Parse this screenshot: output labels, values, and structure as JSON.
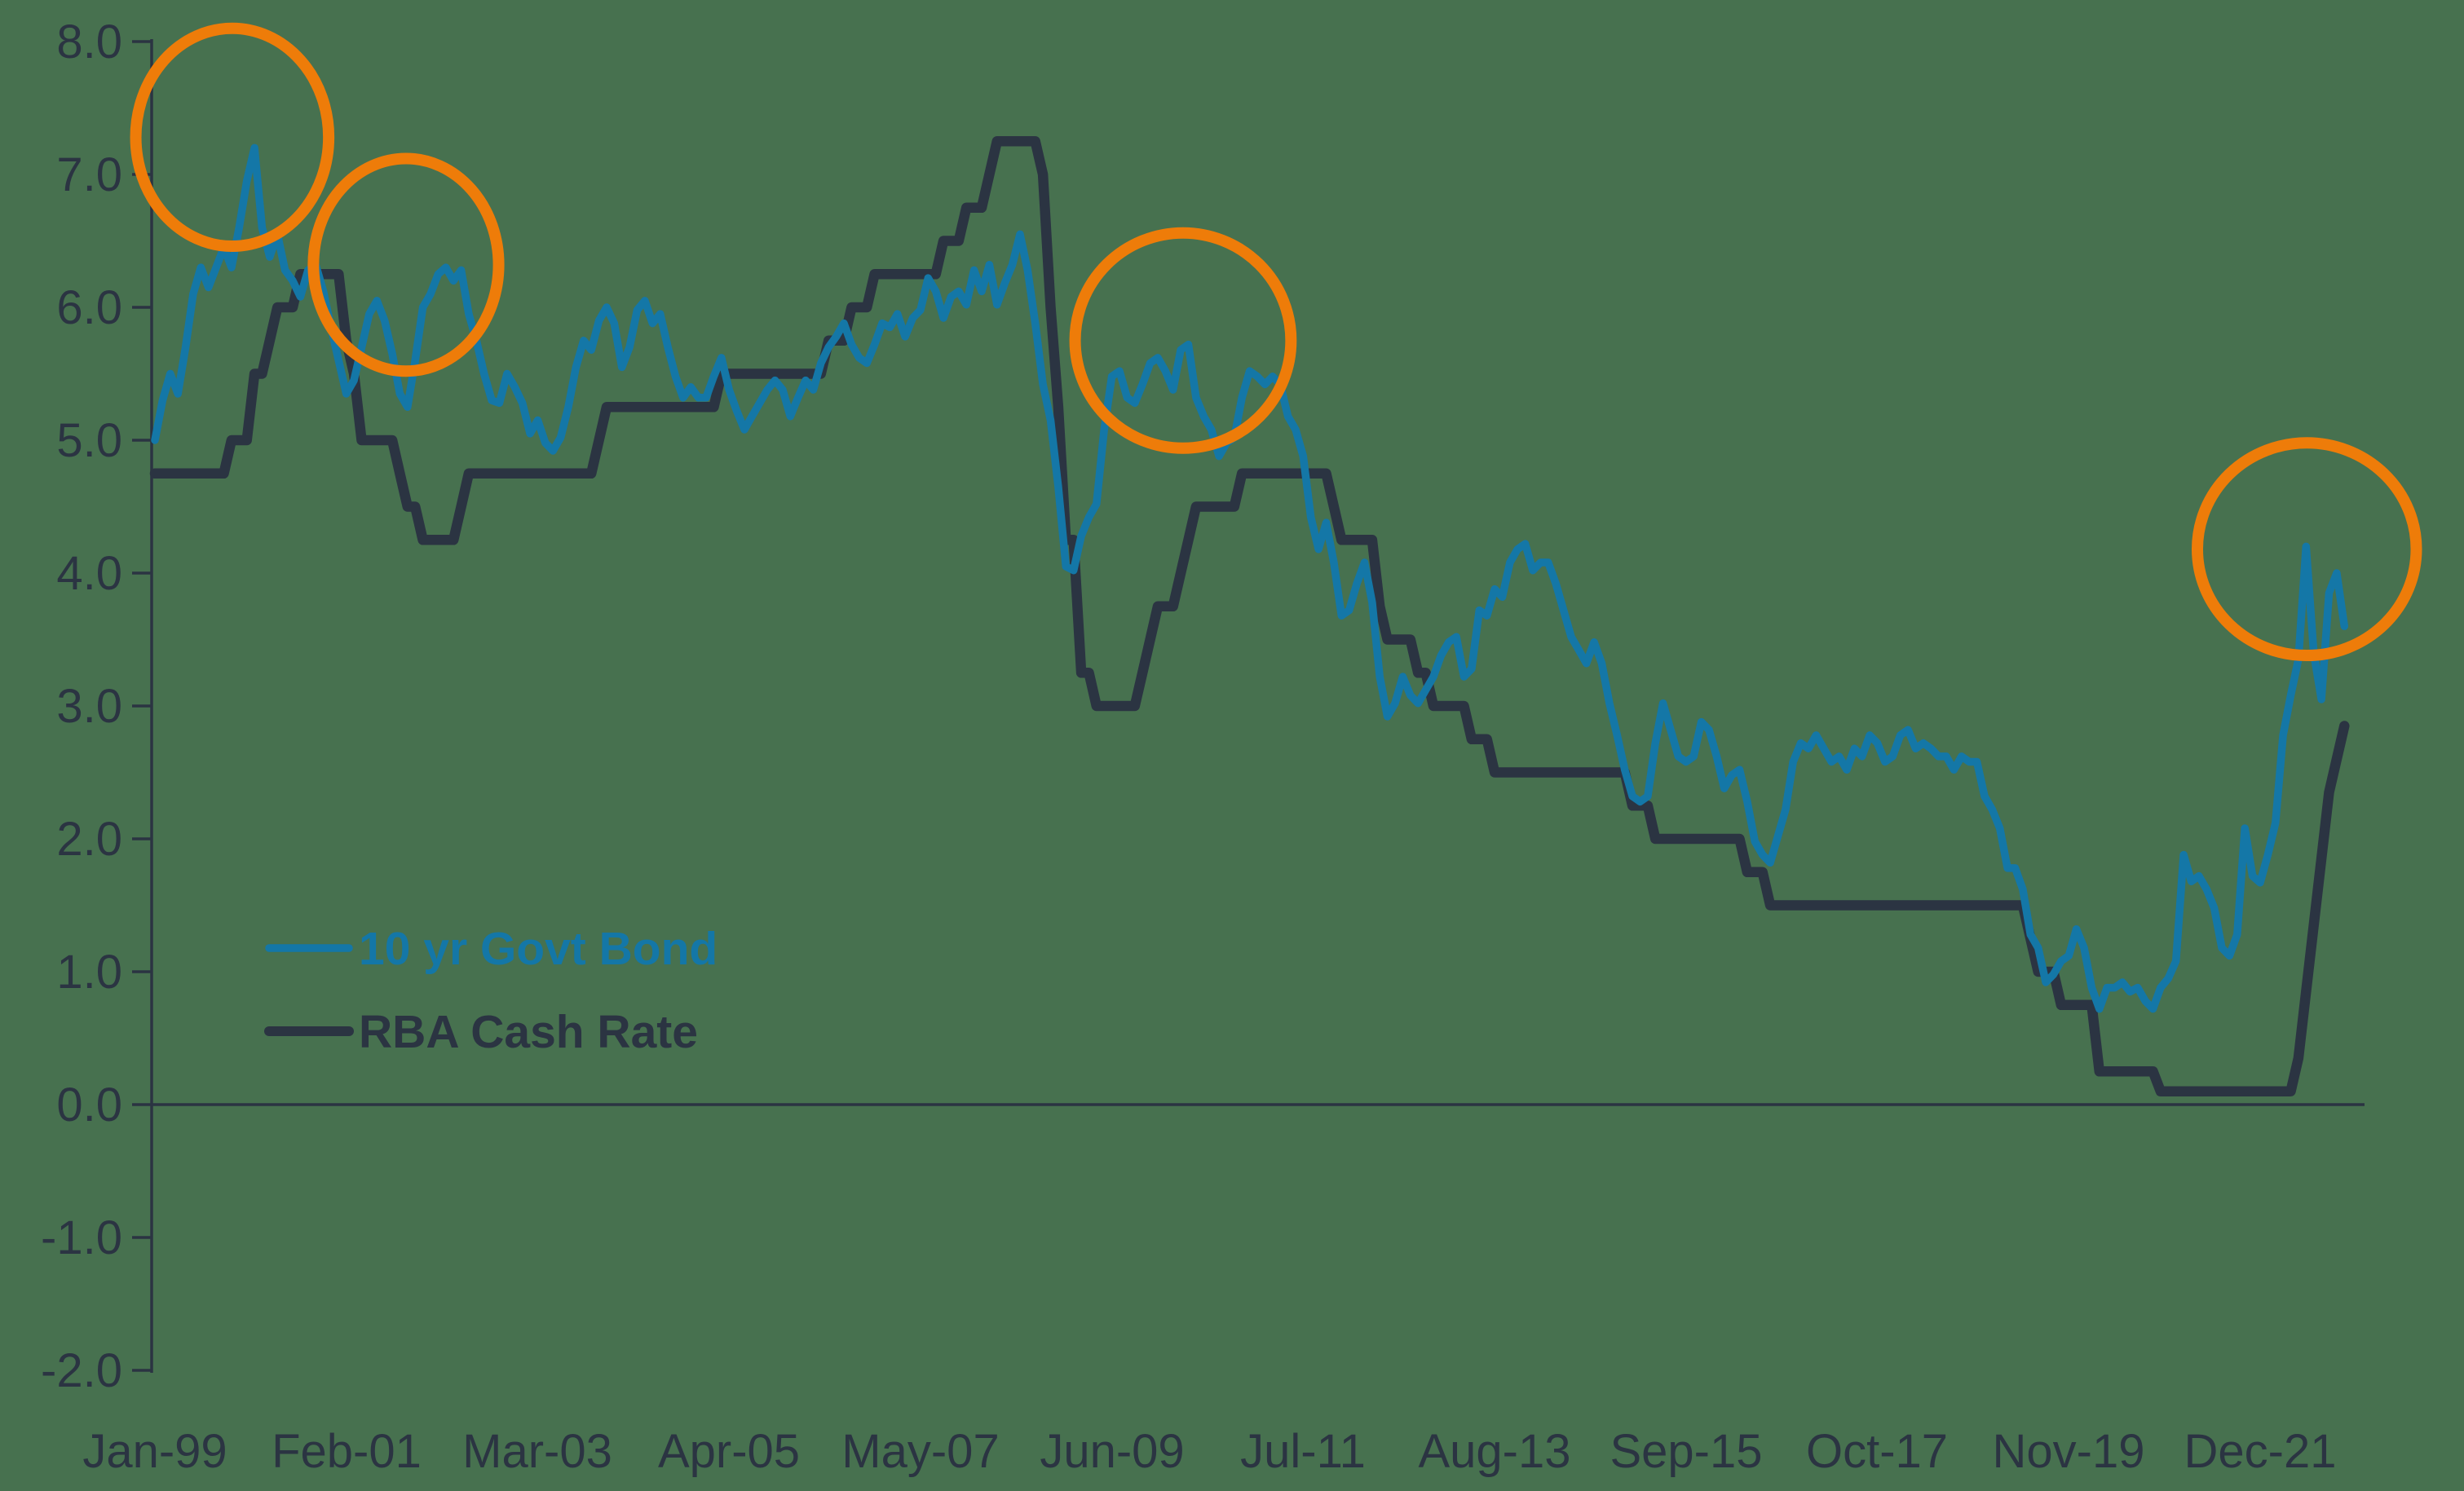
{
  "chart_data": {
    "type": "line",
    "title": "",
    "xlabel": "",
    "ylabel": "",
    "x_start": "Jan-1999",
    "x_end": "Nov-2022",
    "frequency": "monthly",
    "grid": false,
    "legend_position": "inside-lower-left",
    "x_tick_labels": [
      "Jan-99",
      "Feb-01",
      "Mar-03",
      "Apr-05",
      "May-07",
      "Jun-09",
      "Jul-11",
      "Aug-13",
      "Sep-15",
      "Oct-17",
      "Nov-19",
      "Dec-21"
    ],
    "x_tick_interval_months": 25,
    "y_tick_labels": [
      "8.0",
      "7.0",
      "6.0",
      "5.0",
      "4.0",
      "3.0",
      "2.0",
      "1.0",
      "0.0",
      "-1.0",
      "-2.0"
    ],
    "y_ticks": [
      8,
      7,
      6,
      5,
      4,
      3,
      2,
      1,
      0,
      -1,
      -2
    ],
    "ylim": [
      -2.0,
      8.0
    ],
    "series": [
      {
        "name": "10 yr Govt Bond",
        "color": "#1477A7",
        "stroke_width": 9.5,
        "values": [
          5.0,
          5.3,
          5.5,
          5.35,
          5.7,
          6.1,
          6.3,
          6.15,
          6.3,
          6.45,
          6.3,
          6.6,
          6.95,
          7.2,
          6.6,
          6.38,
          6.55,
          6.28,
          6.2,
          6.08,
          6.28,
          6.32,
          6.12,
          5.85,
          5.6,
          5.35,
          5.45,
          5.7,
          5.95,
          6.05,
          5.9,
          5.65,
          5.35,
          5.25,
          5.6,
          6.0,
          6.1,
          6.25,
          6.3,
          6.2,
          6.28,
          5.95,
          5.75,
          5.5,
          5.3,
          5.28,
          5.5,
          5.4,
          5.28,
          5.05,
          5.15,
          4.98,
          4.92,
          5.02,
          5.25,
          5.55,
          5.75,
          5.68,
          5.9,
          6.0,
          5.88,
          5.55,
          5.7,
          5.98,
          6.05,
          5.88,
          5.95,
          5.7,
          5.48,
          5.32,
          5.4,
          5.32,
          5.32,
          5.48,
          5.62,
          5.38,
          5.22,
          5.08,
          5.18,
          5.28,
          5.38,
          5.45,
          5.38,
          5.18,
          5.32,
          5.45,
          5.38,
          5.58,
          5.7,
          5.78,
          5.88,
          5.72,
          5.62,
          5.58,
          5.72,
          5.88,
          5.85,
          5.95,
          5.78,
          5.92,
          5.98,
          6.22,
          6.12,
          5.92,
          6.08,
          6.12,
          6.02,
          6.28,
          6.12,
          6.32,
          6.02,
          6.18,
          6.32,
          6.55,
          6.28,
          5.88,
          5.42,
          5.15,
          4.65,
          4.05,
          4.02,
          4.28,
          4.42,
          4.52,
          5.08,
          5.48,
          5.52,
          5.32,
          5.28,
          5.42,
          5.58,
          5.62,
          5.52,
          5.38,
          5.68,
          5.72,
          5.32,
          5.18,
          5.08,
          4.88,
          4.98,
          5.02,
          5.32,
          5.52,
          5.48,
          5.42,
          5.48,
          5.42,
          5.18,
          5.08,
          4.88,
          4.42,
          4.18,
          4.38,
          4.08,
          3.68,
          3.72,
          3.92,
          4.08,
          3.78,
          3.22,
          2.92,
          3.02,
          3.22,
          3.08,
          3.02,
          3.12,
          3.22,
          3.38,
          3.48,
          3.52,
          3.22,
          3.28,
          3.72,
          3.68,
          3.88,
          3.82,
          4.08,
          4.18,
          4.22,
          4.02,
          4.08,
          4.08,
          3.92,
          3.72,
          3.52,
          3.42,
          3.32,
          3.48,
          3.32,
          3.02,
          2.78,
          2.52,
          2.32,
          2.28,
          2.32,
          2.72,
          3.02,
          2.82,
          2.62,
          2.58,
          2.62,
          2.88,
          2.82,
          2.62,
          2.38,
          2.48,
          2.52,
          2.28,
          1.98,
          1.88,
          1.82,
          2.02,
          2.22,
          2.58,
          2.72,
          2.68,
          2.78,
          2.68,
          2.58,
          2.62,
          2.52,
          2.68,
          2.62,
          2.78,
          2.72,
          2.58,
          2.62,
          2.78,
          2.82,
          2.68,
          2.72,
          2.68,
          2.62,
          2.62,
          2.52,
          2.62,
          2.58,
          2.58,
          2.32,
          2.22,
          2.08,
          1.78,
          1.78,
          1.62,
          1.28,
          1.18,
          0.92,
          0.98,
          1.08,
          1.12,
          1.32,
          1.18,
          0.88,
          0.72,
          0.88,
          0.88,
          0.92,
          0.85,
          0.88,
          0.78,
          0.72,
          0.88,
          0.95,
          1.08,
          1.88,
          1.68,
          1.72,
          1.62,
          1.48,
          1.18,
          1.12,
          1.28,
          2.08,
          1.72,
          1.67,
          1.88,
          2.12,
          2.78,
          3.08,
          3.35,
          4.2,
          3.4,
          3.05,
          3.85,
          4.0,
          3.6
        ]
      },
      {
        "name": "RBA Cash Rate",
        "color": "#2B3442",
        "stroke_width": 12.5,
        "values": [
          4.75,
          4.75,
          4.75,
          4.75,
          4.75,
          4.75,
          4.75,
          4.75,
          4.75,
          4.75,
          5.0,
          5.0,
          5.0,
          5.5,
          5.5,
          5.75,
          6.0,
          6.0,
          6.0,
          6.25,
          6.25,
          6.25,
          6.25,
          6.25,
          6.25,
          5.75,
          5.5,
          5.0,
          5.0,
          5.0,
          5.0,
          5.0,
          4.75,
          4.5,
          4.5,
          4.25,
          4.25,
          4.25,
          4.25,
          4.25,
          4.5,
          4.75,
          4.75,
          4.75,
          4.75,
          4.75,
          4.75,
          4.75,
          4.75,
          4.75,
          4.75,
          4.75,
          4.75,
          4.75,
          4.75,
          4.75,
          4.75,
          4.75,
          5.0,
          5.25,
          5.25,
          5.25,
          5.25,
          5.25,
          5.25,
          5.25,
          5.25,
          5.25,
          5.25,
          5.25,
          5.25,
          5.25,
          5.25,
          5.25,
          5.5,
          5.5,
          5.5,
          5.5,
          5.5,
          5.5,
          5.5,
          5.5,
          5.5,
          5.5,
          5.5,
          5.5,
          5.5,
          5.5,
          5.75,
          5.75,
          5.75,
          6.0,
          6.0,
          6.0,
          6.25,
          6.25,
          6.25,
          6.25,
          6.25,
          6.25,
          6.25,
          6.25,
          6.25,
          6.5,
          6.5,
          6.5,
          6.75,
          6.75,
          6.75,
          7.0,
          7.25,
          7.25,
          7.25,
          7.25,
          7.25,
          7.25,
          7.0,
          6.0,
          5.25,
          4.25,
          4.25,
          3.25,
          3.25,
          3.0,
          3.0,
          3.0,
          3.0,
          3.0,
          3.0,
          3.25,
          3.5,
          3.75,
          3.75,
          3.75,
          4.0,
          4.25,
          4.5,
          4.5,
          4.5,
          4.5,
          4.5,
          4.5,
          4.75,
          4.75,
          4.75,
          4.75,
          4.75,
          4.75,
          4.75,
          4.75,
          4.75,
          4.75,
          4.75,
          4.75,
          4.5,
          4.25,
          4.25,
          4.25,
          4.25,
          4.25,
          3.75,
          3.5,
          3.5,
          3.5,
          3.5,
          3.25,
          3.25,
          3.0,
          3.0,
          3.0,
          3.0,
          3.0,
          2.75,
          2.75,
          2.75,
          2.5,
          2.5,
          2.5,
          2.5,
          2.5,
          2.5,
          2.5,
          2.5,
          2.5,
          2.5,
          2.5,
          2.5,
          2.5,
          2.5,
          2.5,
          2.5,
          2.5,
          2.5,
          2.25,
          2.25,
          2.25,
          2.0,
          2.0,
          2.0,
          2.0,
          2.0,
          2.0,
          2.0,
          2.0,
          2.0,
          2.0,
          2.0,
          2.0,
          1.75,
          1.75,
          1.75,
          1.5,
          1.5,
          1.5,
          1.5,
          1.5,
          1.5,
          1.5,
          1.5,
          1.5,
          1.5,
          1.5,
          1.5,
          1.5,
          1.5,
          1.5,
          1.5,
          1.5,
          1.5,
          1.5,
          1.5,
          1.5,
          1.5,
          1.5,
          1.5,
          1.5,
          1.5,
          1.5,
          1.5,
          1.5,
          1.5,
          1.5,
          1.5,
          1.5,
          1.5,
          1.25,
          1.0,
          1.0,
          1.0,
          0.75,
          0.75,
          0.75,
          0.75,
          0.75,
          0.25,
          0.25,
          0.25,
          0.25,
          0.25,
          0.25,
          0.25,
          0.25,
          0.1,
          0.1,
          0.1,
          0.1,
          0.1,
          0.1,
          0.1,
          0.1,
          0.1,
          0.1,
          0.1,
          0.1,
          0.1,
          0.1,
          0.1,
          0.1,
          0.1,
          0.1,
          0.35,
          0.85,
          1.35,
          1.85,
          2.35,
          2.6,
          2.85
        ]
      }
    ],
    "annotations": {
      "highlight_color": "#EE7C09",
      "highlight_circles": [
        {
          "center_month": 10.1,
          "center_value": 7.28,
          "radius_months": 12.6,
          "radius_value": 0.82
        },
        {
          "center_month": 32.8,
          "center_value": 6.32,
          "radius_months": 12.1,
          "radius_value": 0.8
        },
        {
          "center_month": 134.3,
          "center_value": 5.75,
          "radius_months": 14.1,
          "radius_value": 0.81
        },
        {
          "center_month": 281.1,
          "center_value": 4.18,
          "radius_months": 14.3,
          "radius_value": 0.8
        }
      ]
    }
  },
  "legend": {
    "bond_label": "10 yr Govt Bond",
    "cash_label": "RBA Cash Rate"
  },
  "colors": {
    "background": "#47714F",
    "axis": "#2B3442",
    "bond_line": "#1477A7",
    "cash_line": "#2B3442",
    "highlight": "#EE7C09"
  }
}
